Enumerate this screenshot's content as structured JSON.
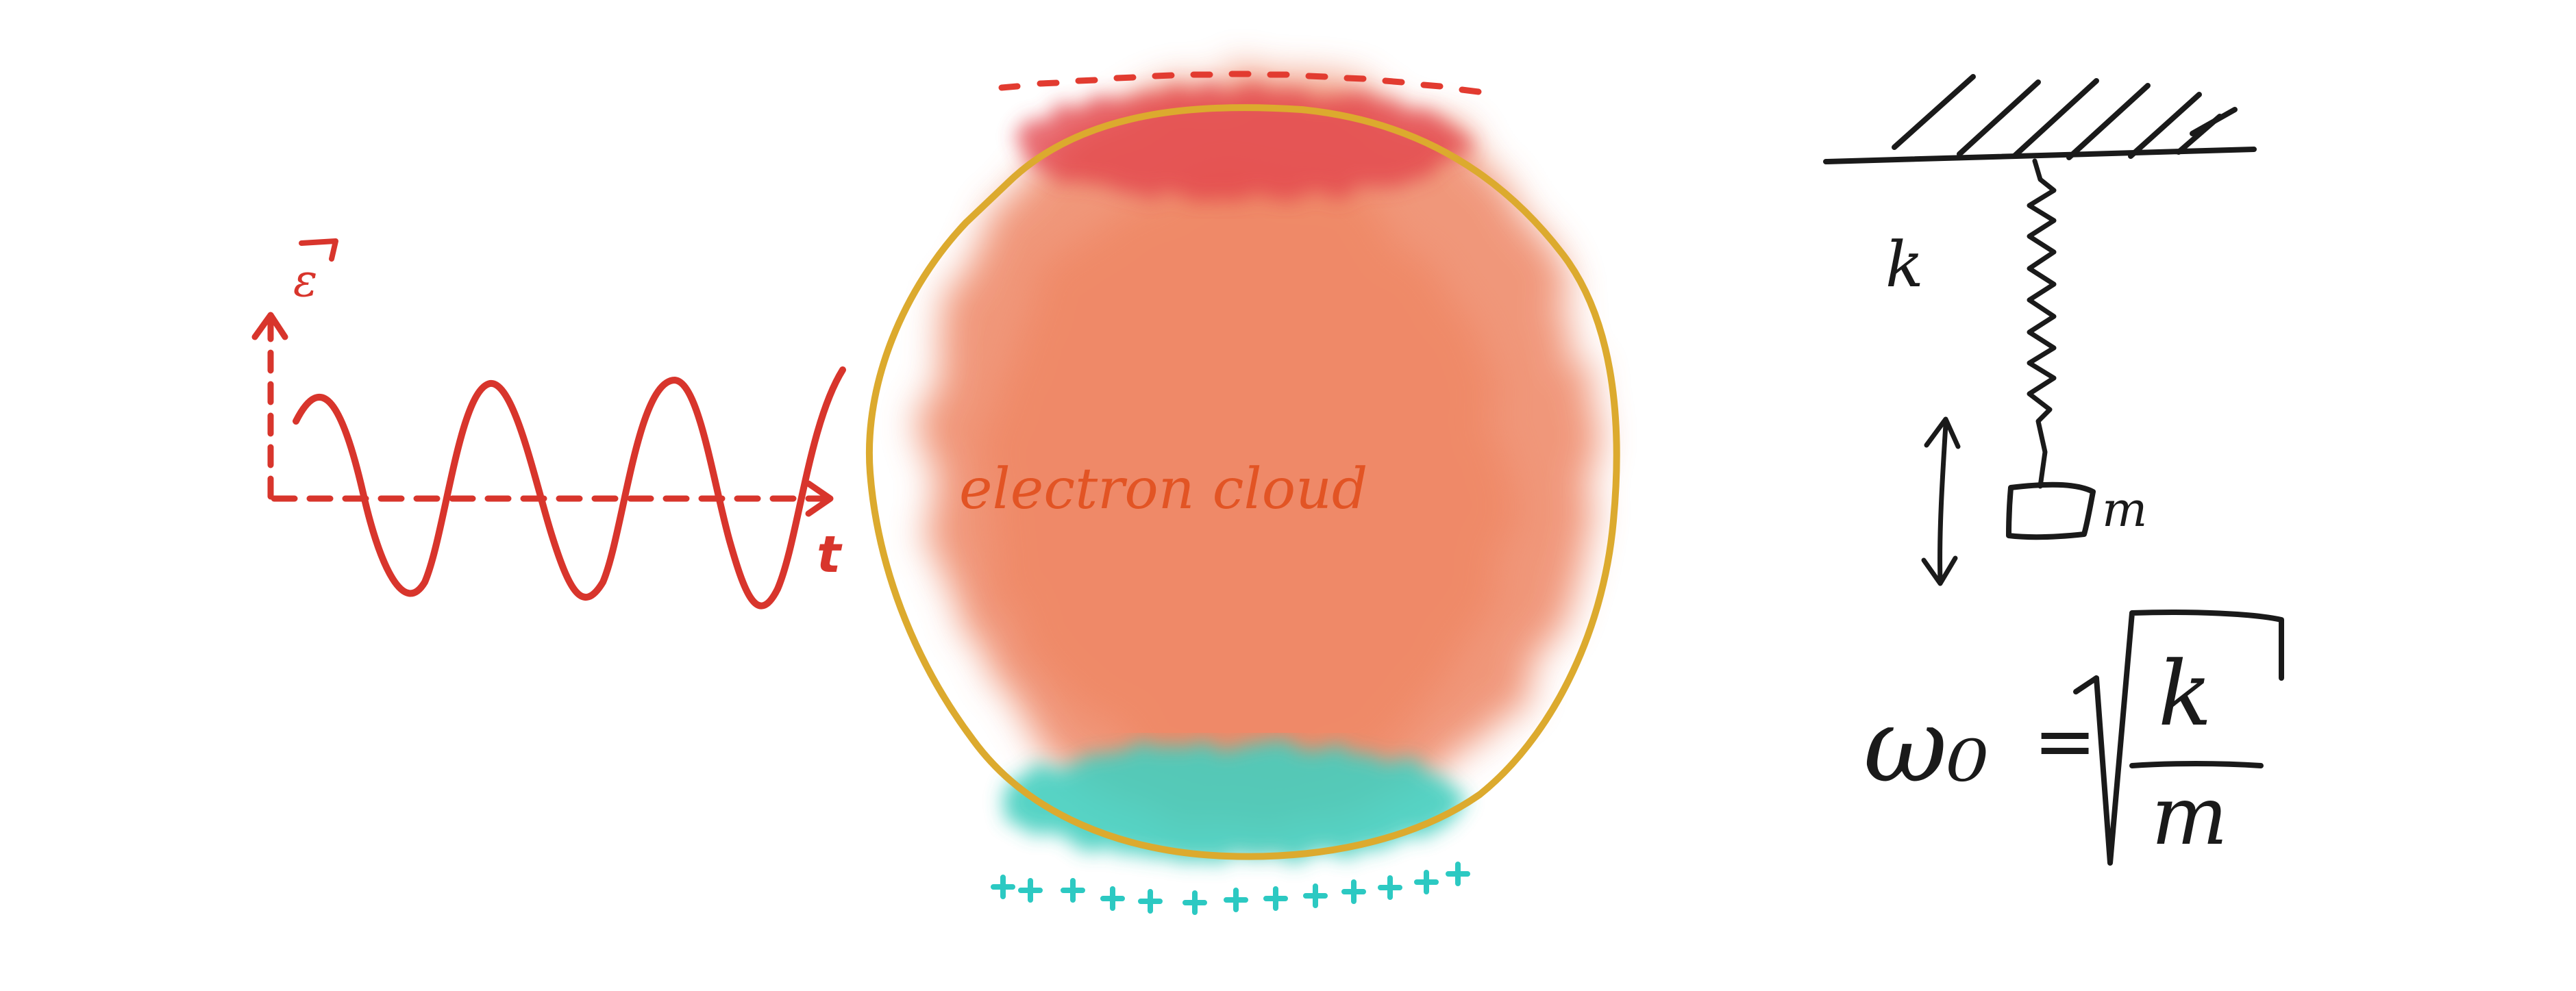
{
  "labels": {
    "field_symbol": "ε",
    "time_axis": "t",
    "cloud": "electron cloud",
    "spring_constant": "k",
    "mass": "m",
    "formula_lhs": "ω₀",
    "formula_eq": "=",
    "formula_num": "k",
    "formula_den": "m"
  },
  "colors": {
    "wave": "#d8352c",
    "cloud": "#ec7a57",
    "cloud_top": "#e2414a",
    "cloud_bottom": "#45cfbf",
    "ring": "#dcaa2e",
    "cloud_text": "#e25424",
    "minus_signs": "#e23b30",
    "plus_signs": "#2cc9c2",
    "ink": "#1a1a1a"
  }
}
